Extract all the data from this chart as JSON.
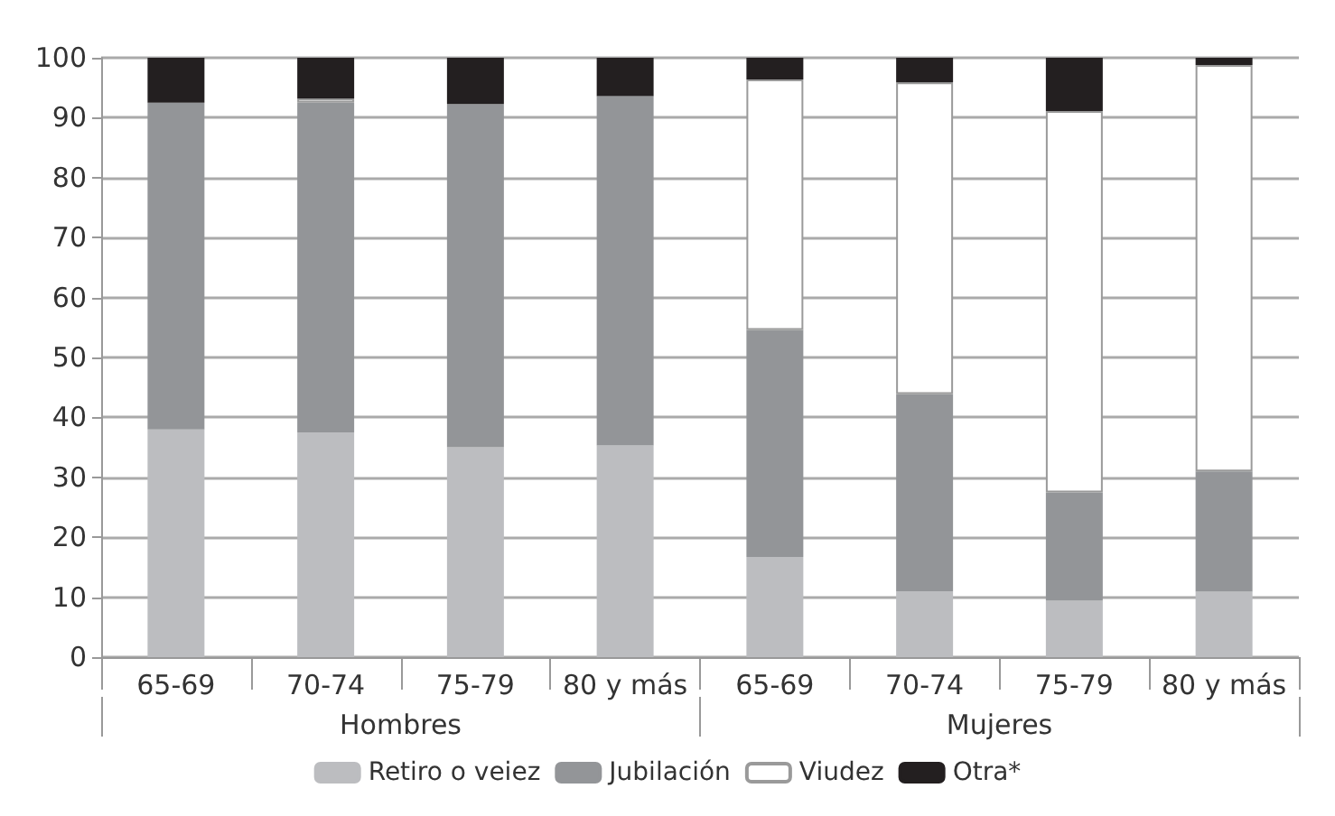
{
  "chart_data": {
    "type": "bar",
    "stacked": true,
    "categories": [
      "65-69",
      "70-74",
      "75-79",
      "80 y más",
      "65-69",
      "70-74",
      "75-79",
      "80 y más"
    ],
    "annotations": [
      "Hombres",
      "Mujeres"
    ],
    "series": [
      {
        "name": "Retiro o veiez",
        "color": "#bcbdc0",
        "values": [
          38,
          37.5,
          35,
          35.3,
          16.7,
          11.0,
          9.4,
          10.9
        ]
      },
      {
        "name": "Jubilación",
        "color": "#939598",
        "values": [
          54.5,
          55,
          57.3,
          58.3,
          37.9,
          32.9,
          18.1,
          20.1
        ]
      },
      {
        "name": "Viudez",
        "color": "#ffffff",
        "values": [
          null,
          0.7,
          null,
          null,
          41.8,
          52.0,
          63.6,
          67.8
        ]
      },
      {
        "name": "Otra*",
        "color": "#231f20",
        "values": [
          7.5,
          6.8,
          7.7,
          6.4,
          3.6,
          4.1,
          8.9,
          1.2
        ]
      }
    ],
    "ylim": [
      0,
      100
    ],
    "yticks": [
      0,
      10,
      20,
      30,
      40,
      50,
      60,
      70,
      80,
      90,
      100
    ],
    "grid": "y",
    "legend": "bottom"
  }
}
